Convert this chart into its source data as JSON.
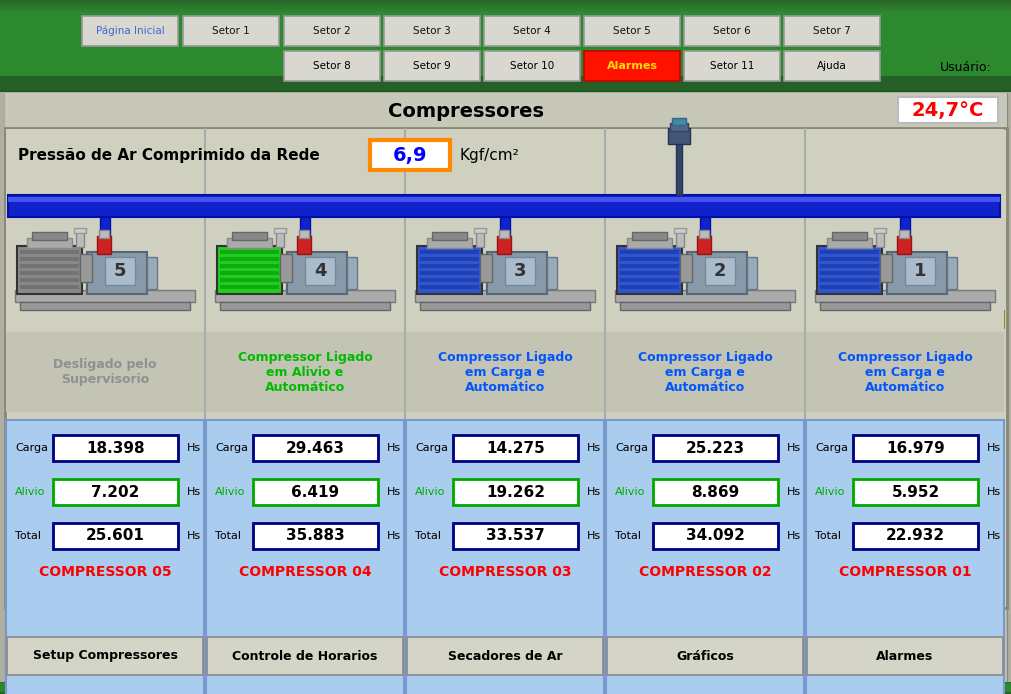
{
  "title": "Compressores",
  "temp": "24,7°C",
  "pressure_label": "Pressão de Ar Comprimido da Rede",
  "pressure_value": "6,9",
  "pressure_unit": "Kgf/cm²",
  "bg_outer": "#b0b0a0",
  "bg_main": "#c8c8b8",
  "bg_inner": "#d0d0c0",
  "header_bg": "#2d7a2d",
  "header_grad_mid": "#3a8a3a",
  "nav_btn_color": "#d8d8d0",
  "nav_btn_edge": "#aaaaaa",
  "alarmes_red": "#ff1100",
  "alarmes_text": "#ffdd00",
  "nav_buttons_row1": [
    "Página Inicial",
    "Setor 1",
    "Setor 2",
    "Setor 3",
    "Setor 4",
    "Setor 5",
    "Setor 6",
    "Setor 7"
  ],
  "nav_buttons_row2": [
    "Setor 8",
    "Setor 9",
    "Setor 10",
    "Alarmes",
    "Setor 11",
    "Ajuda"
  ],
  "bottom_buttons": [
    "Setup Compressores",
    "Controle de Horarios",
    "Secadores de Ar",
    "Gráficos",
    "Alarmes"
  ],
  "compressors": [
    {
      "id": "05",
      "num": "5",
      "status": "Desligado pelo\nSupervisorio",
      "status_color": "#909090",
      "motor_color": "#888888",
      "motor_stripe": "#666666",
      "carga": "18.398",
      "alivio": "7.202",
      "total": "25.601",
      "carga_border": "#000080",
      "alivio_border": "#00aa00",
      "total_border": "#000080"
    },
    {
      "id": "04",
      "num": "4",
      "status": "Compressor Ligado\nem Alivio e\nAutomático",
      "status_color": "#00bb00",
      "motor_color": "#22cc22",
      "motor_stripe": "#009900",
      "carga": "29.463",
      "alivio": "6.419",
      "total": "35.883",
      "carga_border": "#000080",
      "alivio_border": "#00aa00",
      "total_border": "#000080"
    },
    {
      "id": "03",
      "num": "3",
      "status": "Compressor Ligado\nem Carga e\nAutomático",
      "status_color": "#0055ff",
      "motor_color": "#3355cc",
      "motor_stripe": "#1133aa",
      "carga": "14.275",
      "alivio": "19.262",
      "total": "33.537",
      "carga_border": "#000080",
      "alivio_border": "#00aa00",
      "total_border": "#000080"
    },
    {
      "id": "02",
      "num": "2",
      "status": "Compressor Ligado\nem Carga e\nAutomático",
      "status_color": "#0055ff",
      "motor_color": "#3355cc",
      "motor_stripe": "#1133aa",
      "carga": "25.223",
      "alivio": "8.869",
      "total": "34.092",
      "carga_border": "#000080",
      "alivio_border": "#00aa00",
      "total_border": "#000080"
    },
    {
      "id": "01",
      "num": "1",
      "status": "Compressor Ligado\nem Carga e\nAutomático",
      "status_color": "#0055ff",
      "motor_color": "#3355cc",
      "motor_stripe": "#1133aa",
      "carga": "16.979",
      "alivio": "5.952",
      "total": "22.932",
      "carga_border": "#000080",
      "alivio_border": "#00aa00",
      "total_border": "#000080"
    }
  ]
}
